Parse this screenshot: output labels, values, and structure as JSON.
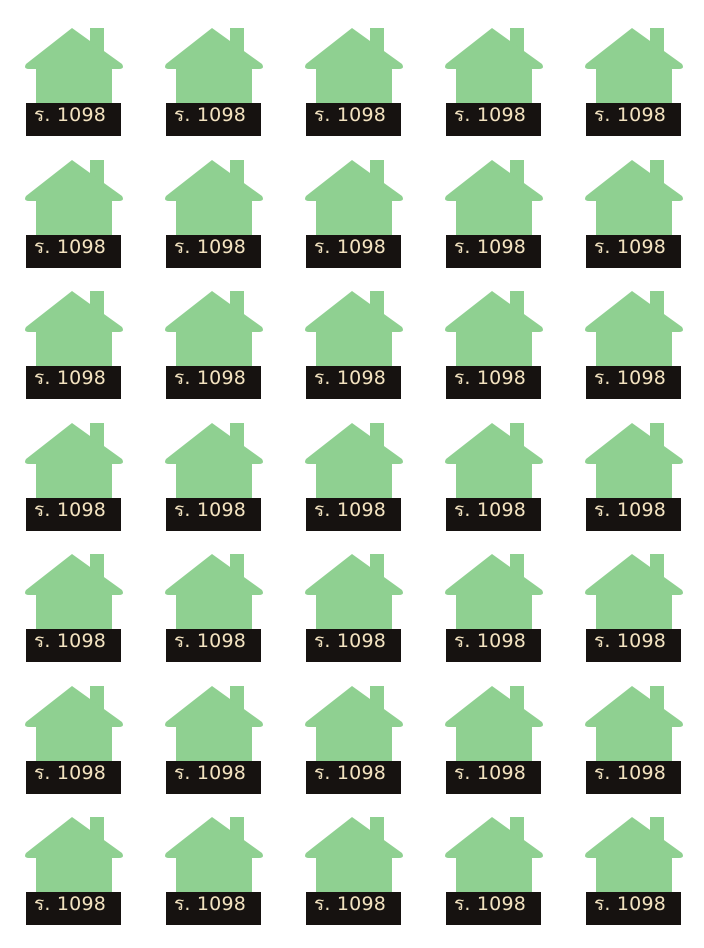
{
  "tile_label": "ร. 1098",
  "house_color": "#8fd091",
  "plate_color": "#161210",
  "label_color": "#f3e3c0",
  "rows": 7,
  "columns": 5
}
